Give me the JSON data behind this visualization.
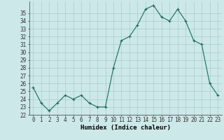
{
  "x": [
    0,
    1,
    2,
    3,
    4,
    5,
    6,
    7,
    8,
    9,
    10,
    11,
    12,
    13,
    14,
    15,
    16,
    17,
    18,
    19,
    20,
    21,
    22,
    23
  ],
  "y": [
    25.5,
    23.5,
    22.5,
    23.5,
    24.5,
    24.0,
    24.5,
    23.5,
    23.0,
    23.0,
    28.0,
    31.5,
    32.0,
    33.5,
    35.5,
    36.0,
    34.5,
    34.0,
    35.5,
    34.0,
    31.5,
    31.0,
    26.0,
    24.5
  ],
  "xlabel": "Humidex (Indice chaleur)",
  "ylim_min": 22,
  "ylim_max": 36,
  "xlim_min": -0.5,
  "xlim_max": 23.5,
  "yticks": [
    22,
    23,
    24,
    25,
    26,
    27,
    28,
    29,
    30,
    31,
    32,
    33,
    34,
    35
  ],
  "xticks": [
    0,
    1,
    2,
    3,
    4,
    5,
    6,
    7,
    8,
    9,
    10,
    11,
    12,
    13,
    14,
    15,
    16,
    17,
    18,
    19,
    20,
    21,
    22,
    23
  ],
  "xtick_labels": [
    "0",
    "1",
    "2",
    "3",
    "4",
    "5",
    "6",
    "7",
    "8",
    "9",
    "10",
    "11",
    "12",
    "13",
    "14",
    "15",
    "16",
    "17",
    "18",
    "19",
    "20",
    "21",
    "22",
    "23"
  ],
  "line_color": "#1a6b5a",
  "marker": "+",
  "bg_color": "#cce8e8",
  "grid_color": "#aacccc",
  "xlabel_fontsize": 6.5,
  "tick_fontsize": 5.5,
  "linewidth": 0.8,
  "markersize": 3,
  "markeredgewidth": 0.8
}
